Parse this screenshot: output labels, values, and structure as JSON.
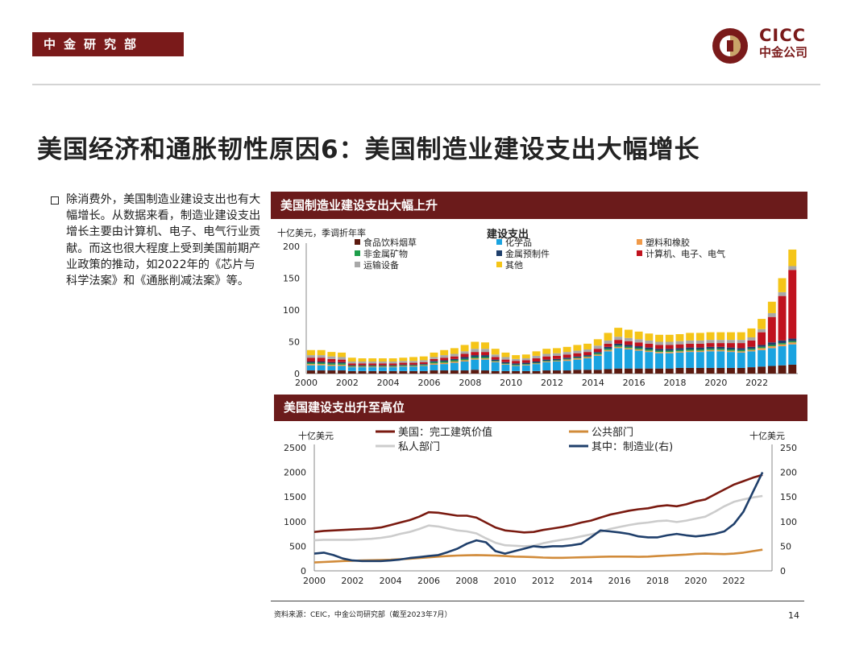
{
  "header": {
    "dept": "中金研究部",
    "logo_en": "CICC",
    "logo_cn": "中金公司"
  },
  "title": "美国经济和通胀韧性原因6：美国制造业建设支出大幅增长",
  "bullet": "除消费外，美国制造业建设支出也有大幅增长。从数据来看，制造业建设支出增长主要由计算机、电子、电气行业贡献。而这也很大程度上受到美国前期产业政策的推动，如2022年的《芯片与科学法案》和《通胀削减法案》等。",
  "colors": {
    "brand": "#7a1a1a",
    "panel_head": "#6b1b1b"
  },
  "chart_data": [
    {
      "type": "bar",
      "stacked": true,
      "panel_title": "美国制造业建设支出大幅上升",
      "title": "建设支出",
      "ylabel": "十亿美元，季调折年率",
      "ylim": [
        0,
        200
      ],
      "yticks": [
        0,
        50,
        100,
        150,
        200
      ],
      "xticks": [
        "2000",
        "2002",
        "2004",
        "2006",
        "2008",
        "2010",
        "2012",
        "2014",
        "2016",
        "2018",
        "2020",
        "2022"
      ],
      "x": [
        2000,
        2000.5,
        2001,
        2001.5,
        2002,
        2002.5,
        2003,
        2003.5,
        2004,
        2004.5,
        2005,
        2005.5,
        2006,
        2006.5,
        2007,
        2007.5,
        2008,
        2008.5,
        2009,
        2009.5,
        2010,
        2010.5,
        2011,
        2011.5,
        2012,
        2012.5,
        2013,
        2013.5,
        2014,
        2014.5,
        2015,
        2015.5,
        2016,
        2016.5,
        2017,
        2017.5,
        2018,
        2018.5,
        2019,
        2019.5,
        2020,
        2020.5,
        2021,
        2021.5,
        2022,
        2022.5,
        2023,
        2023.5
      ],
      "series": [
        {
          "name": "食品饮料烟草",
          "color": "#5c1a10",
          "values": [
            5,
            5,
            5,
            5,
            4,
            4,
            4,
            4,
            4,
            4,
            4,
            4,
            5,
            5,
            5,
            5,
            6,
            5,
            4,
            4,
            4,
            4,
            4,
            5,
            5,
            5,
            6,
            6,
            6,
            7,
            8,
            8,
            8,
            8,
            8,
            8,
            9,
            9,
            9,
            9,
            9,
            9,
            9,
            10,
            11,
            12,
            13,
            14
          ]
        },
        {
          "name": "化学品",
          "color": "#1aa3e0",
          "values": [
            8,
            8,
            7,
            7,
            6,
            6,
            6,
            6,
            6,
            7,
            7,
            8,
            9,
            10,
            12,
            14,
            16,
            17,
            14,
            10,
            8,
            9,
            11,
            13,
            14,
            15,
            16,
            18,
            22,
            28,
            32,
            30,
            28,
            26,
            24,
            24,
            24,
            25,
            25,
            26,
            26,
            25,
            24,
            25,
            26,
            28,
            30,
            32
          ]
        },
        {
          "name": "塑料和橡胶",
          "color": "#f09a4a",
          "values": [
            2,
            2,
            2,
            2,
            1,
            1,
            1,
            1,
            1,
            1,
            1,
            1,
            2,
            2,
            2,
            2,
            2,
            2,
            1,
            1,
            1,
            1,
            1,
            1,
            1,
            2,
            2,
            2,
            2,
            2,
            2,
            2,
            2,
            2,
            2,
            2,
            2,
            2,
            2,
            2,
            2,
            2,
            2,
            2,
            3,
            3,
            3,
            3
          ]
        },
        {
          "name": "非金属矿物",
          "color": "#1e9e4a",
          "values": [
            2,
            2,
            2,
            2,
            1,
            1,
            1,
            1,
            1,
            1,
            1,
            1,
            2,
            2,
            2,
            2,
            2,
            2,
            1,
            1,
            1,
            1,
            1,
            1,
            1,
            1,
            1,
            1,
            2,
            2,
            2,
            2,
            2,
            2,
            2,
            2,
            2,
            2,
            2,
            2,
            2,
            2,
            2,
            2,
            2,
            2,
            2,
            2
          ]
        },
        {
          "name": "金属预制件",
          "color": "#1f3f6b",
          "values": [
            2,
            2,
            2,
            2,
            1,
            1,
            1,
            1,
            1,
            1,
            1,
            1,
            2,
            2,
            2,
            3,
            3,
            3,
            2,
            2,
            2,
            2,
            2,
            2,
            2,
            2,
            2,
            2,
            2,
            3,
            3,
            3,
            3,
            3,
            3,
            3,
            3,
            3,
            3,
            3,
            3,
            3,
            3,
            3,
            3,
            4,
            4,
            4
          ]
        },
        {
          "name": "计算机、电子、电气",
          "color": "#c0121e",
          "values": [
            6,
            6,
            5,
            4,
            3,
            3,
            3,
            3,
            3,
            3,
            3,
            3,
            3,
            4,
            4,
            5,
            5,
            5,
            4,
            4,
            4,
            4,
            5,
            5,
            5,
            5,
            5,
            5,
            5,
            5,
            6,
            6,
            6,
            6,
            6,
            6,
            6,
            6,
            6,
            6,
            6,
            7,
            8,
            10,
            20,
            40,
            70,
            108
          ]
        },
        {
          "name": "运输设备",
          "color": "#a8a8a8",
          "values": [
            4,
            4,
            4,
            4,
            3,
            3,
            3,
            3,
            3,
            3,
            3,
            3,
            3,
            4,
            4,
            4,
            5,
            5,
            4,
            4,
            3,
            3,
            4,
            4,
            4,
            4,
            4,
            4,
            5,
            5,
            5,
            5,
            5,
            5,
            5,
            5,
            5,
            5,
            5,
            5,
            5,
            5,
            5,
            5,
            5,
            6,
            6,
            6
          ]
        },
        {
          "name": "其他",
          "color": "#f5c518",
          "values": [
            8,
            8,
            7,
            7,
            6,
            5,
            5,
            5,
            5,
            5,
            6,
            6,
            7,
            8,
            9,
            10,
            11,
            10,
            9,
            7,
            6,
            6,
            7,
            8,
            8,
            8,
            9,
            9,
            10,
            12,
            14,
            13,
            12,
            11,
            11,
            11,
            11,
            12,
            12,
            12,
            12,
            12,
            12,
            14,
            16,
            18,
            22,
            26
          ]
        }
      ]
    },
    {
      "type": "line",
      "panel_title": "美国建设支出升至高位",
      "ylabel_left": "十亿美元",
      "ylabel_right": "十亿美元",
      "ylim_left": [
        0,
        2500
      ],
      "ylim_right": [
        0,
        250
      ],
      "yticks_left": [
        0,
        500,
        1000,
        1500,
        2000,
        2500
      ],
      "yticks_right": [
        0,
        50,
        100,
        150,
        200,
        250
      ],
      "xticks": [
        "2000",
        "2002",
        "2004",
        "2006",
        "2008",
        "2010",
        "2012",
        "2014",
        "2016",
        "2018",
        "2020",
        "2022"
      ],
      "x": [
        2000,
        2000.5,
        2001,
        2001.5,
        2002,
        2002.5,
        2003,
        2003.5,
        2004,
        2004.5,
        2005,
        2005.5,
        2006,
        2006.5,
        2007,
        2007.5,
        2008,
        2008.5,
        2009,
        2009.5,
        2010,
        2010.5,
        2011,
        2011.5,
        2012,
        2012.5,
        2013,
        2013.5,
        2014,
        2014.5,
        2015,
        2015.5,
        2016,
        2016.5,
        2017,
        2017.5,
        2018,
        2018.5,
        2019,
        2019.5,
        2020,
        2020.5,
        2021,
        2021.5,
        2022,
        2022.5,
        2023,
        2023.5
      ],
      "series": [
        {
          "name": "美国：完工建筑价值",
          "color": "#7a1a10",
          "axis": "left",
          "values": [
            790,
            810,
            820,
            830,
            840,
            850,
            860,
            880,
            930,
            980,
            1030,
            1100,
            1190,
            1180,
            1150,
            1120,
            1120,
            1080,
            980,
            880,
            820,
            800,
            780,
            790,
            830,
            860,
            890,
            930,
            980,
            1020,
            1080,
            1140,
            1180,
            1220,
            1250,
            1270,
            1310,
            1330,
            1310,
            1350,
            1410,
            1450,
            1550,
            1650,
            1750,
            1820,
            1890,
            1950
          ]
        },
        {
          "name": "公共部门",
          "color": "#d18b3a",
          "axis": "left",
          "values": [
            170,
            180,
            190,
            200,
            205,
            210,
            215,
            220,
            225,
            235,
            245,
            260,
            275,
            290,
            300,
            310,
            315,
            320,
            315,
            310,
            300,
            290,
            285,
            280,
            270,
            265,
            265,
            270,
            275,
            280,
            285,
            290,
            290,
            290,
            285,
            290,
            300,
            310,
            320,
            330,
            345,
            350,
            345,
            340,
            350,
            370,
            400,
            430
          ]
        },
        {
          "name": "私人部门",
          "color": "#cccccc",
          "axis": "left",
          "values": [
            620,
            630,
            630,
            630,
            630,
            640,
            650,
            670,
            700,
            750,
            790,
            850,
            920,
            900,
            860,
            820,
            800,
            760,
            660,
            570,
            520,
            510,
            500,
            510,
            560,
            600,
            630,
            660,
            700,
            740,
            790,
            850,
            890,
            930,
            960,
            980,
            1010,
            1020,
            990,
            1020,
            1060,
            1100,
            1200,
            1310,
            1400,
            1450,
            1490,
            1520
          ]
        },
        {
          "name": "其中：制造业(右)",
          "color": "#1f3f6b",
          "axis": "right",
          "values": [
            35,
            37,
            32,
            25,
            21,
            20,
            20,
            20,
            21,
            23,
            26,
            28,
            30,
            32,
            38,
            45,
            55,
            62,
            58,
            40,
            35,
            40,
            45,
            50,
            48,
            50,
            50,
            52,
            55,
            68,
            82,
            80,
            78,
            75,
            70,
            68,
            68,
            72,
            75,
            72,
            70,
            72,
            75,
            80,
            95,
            120,
            160,
            200
          ]
        }
      ]
    }
  ],
  "footer": {
    "source": "资料来源：CEIC，中金公司研究部（截至2023年7月）",
    "page": "14"
  }
}
